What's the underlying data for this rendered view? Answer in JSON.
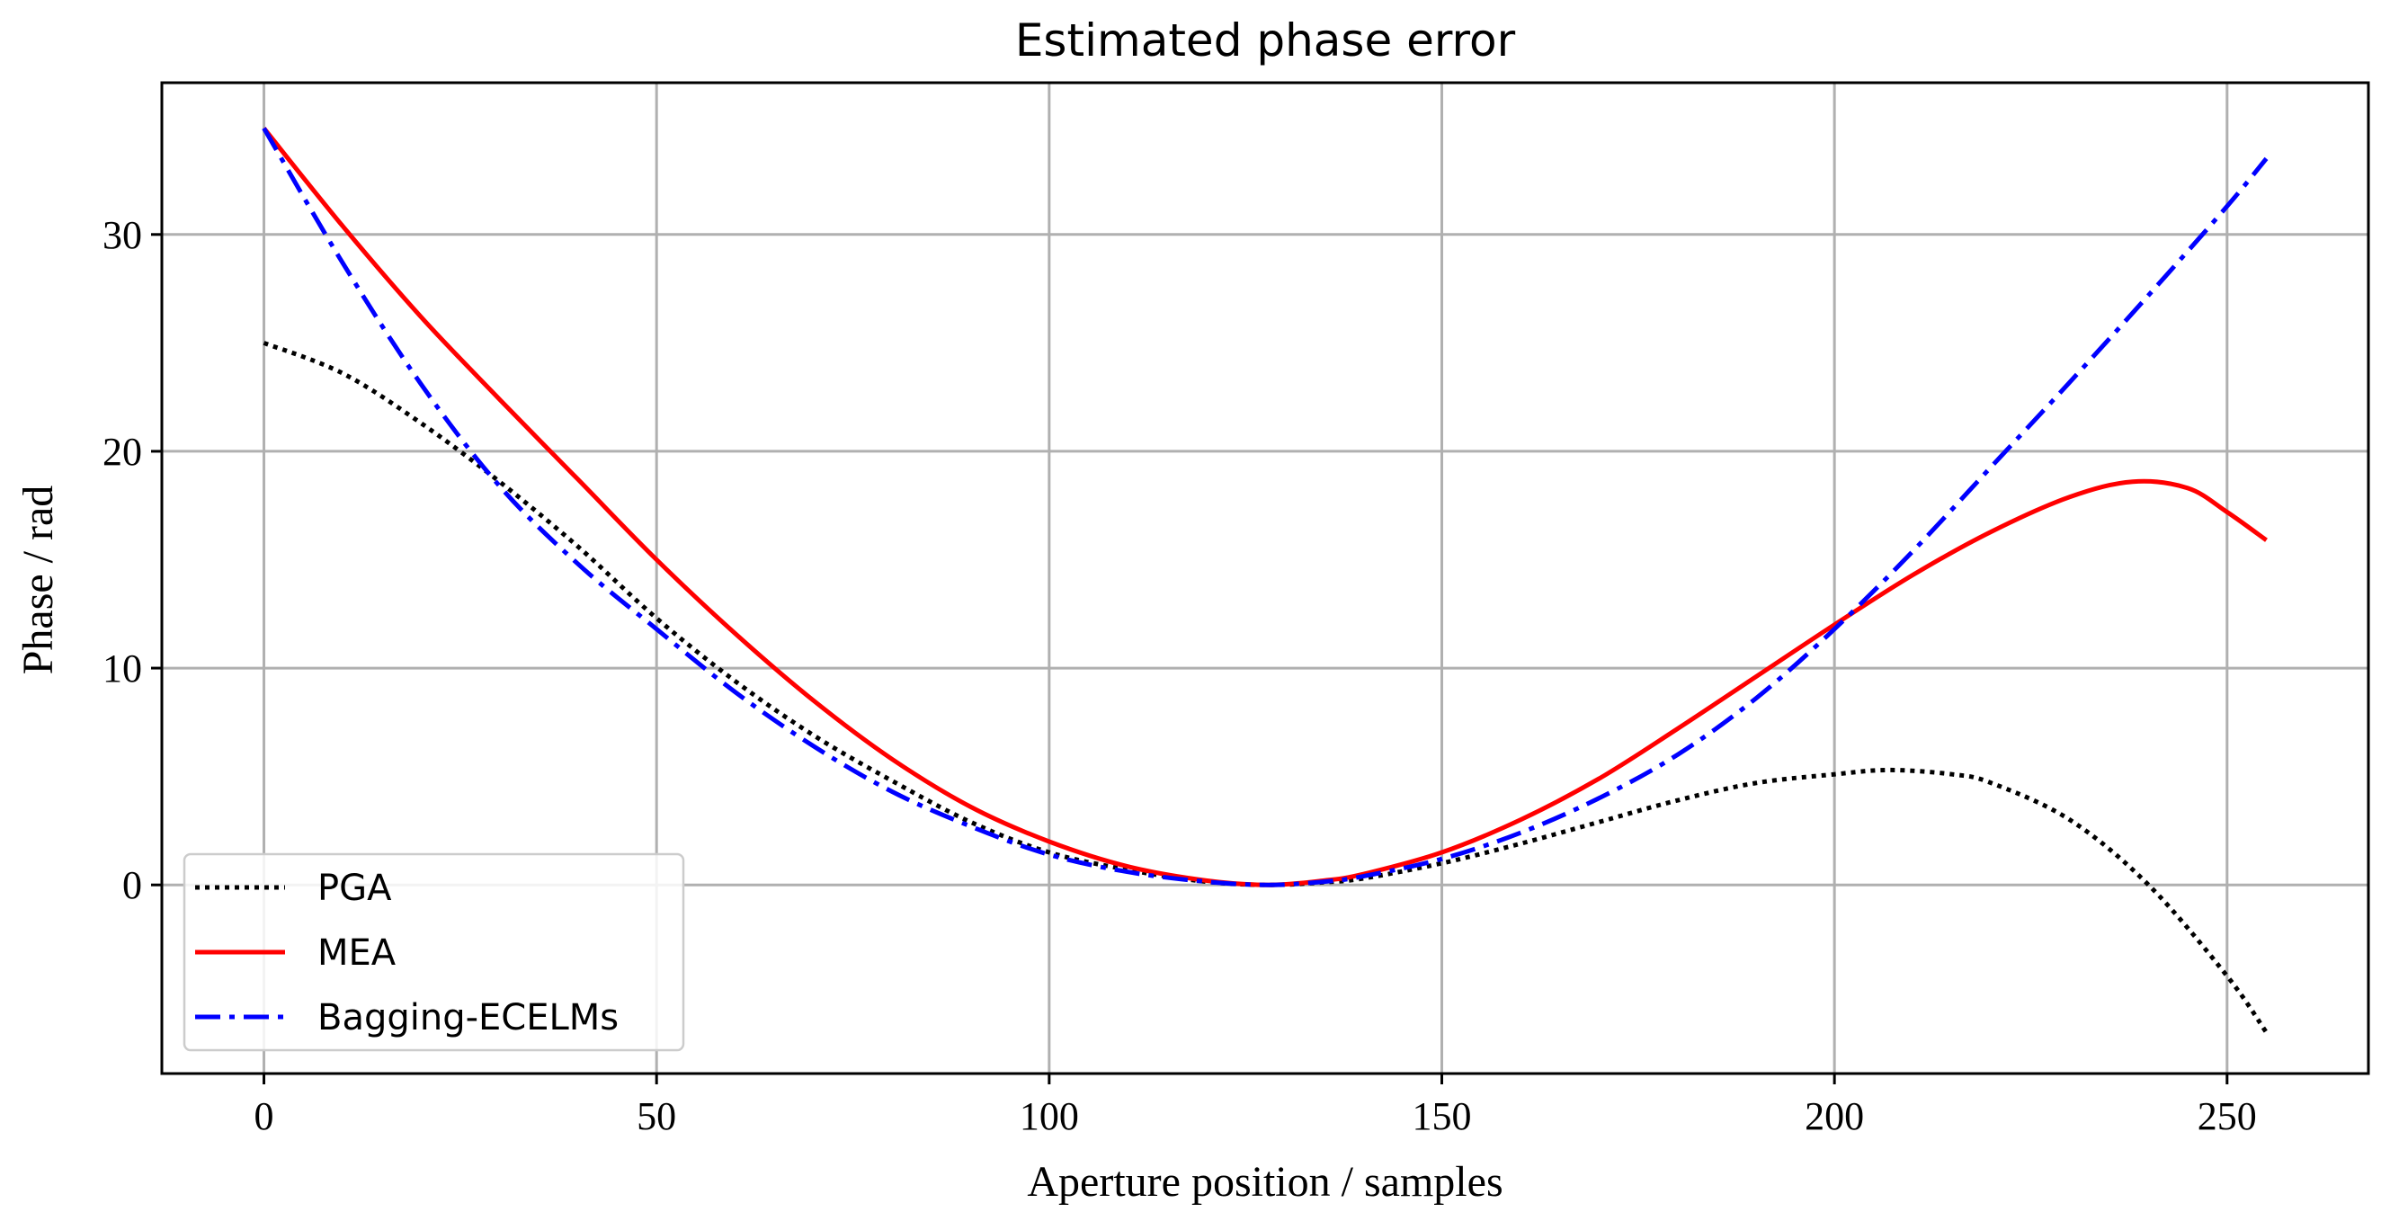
{
  "chart_data": {
    "type": "line",
    "title": "Estimated phase error",
    "xlabel": "Aperture position / samples",
    "ylabel": "Phase / rad",
    "xlim": [
      -13,
      268
    ],
    "ylim": [
      -8.7,
      37
    ],
    "xticks": [
      0,
      50,
      100,
      150,
      200,
      250
    ],
    "yticks": [
      0,
      10,
      20,
      30
    ],
    "grid": true,
    "legend_position": "bottom-left",
    "series": [
      {
        "name": "PGA",
        "color": "#000000",
        "style": "dotted",
        "x": [
          0,
          10,
          20,
          30,
          40,
          50,
          60,
          70,
          80,
          90,
          100,
          110,
          120,
          128,
          135,
          140,
          150,
          160,
          170,
          180,
          190,
          200,
          207,
          215,
          220,
          230,
          240,
          250,
          255
        ],
        "y": [
          25.0,
          23.6,
          21.3,
          18.6,
          15.6,
          12.3,
          9.4,
          6.9,
          4.8,
          2.9,
          1.5,
          0.7,
          0.15,
          0.0,
          0.12,
          0.3,
          1.0,
          1.9,
          2.9,
          3.9,
          4.7,
          5.1,
          5.3,
          5.1,
          4.7,
          3.0,
          0.0,
          -4.2,
          -6.8
        ]
      },
      {
        "name": "MEA",
        "color": "#ff0000",
        "style": "solid",
        "x": [
          0,
          10,
          20,
          30,
          40,
          50,
          60,
          70,
          80,
          90,
          100,
          110,
          120,
          128,
          135,
          140,
          150,
          160,
          170,
          180,
          190,
          200,
          210,
          220,
          230,
          238,
          245,
          250,
          255
        ],
        "y": [
          34.9,
          30.4,
          26.2,
          22.4,
          18.7,
          15.0,
          11.6,
          8.5,
          5.8,
          3.6,
          2.0,
          0.85,
          0.2,
          0.0,
          0.2,
          0.5,
          1.5,
          3.0,
          4.9,
          7.2,
          9.6,
          12.0,
          14.3,
          16.3,
          17.9,
          18.6,
          18.3,
          17.2,
          15.9
        ]
      },
      {
        "name": "Bagging-ECELMs",
        "color": "#0000ff",
        "style": "dashdot",
        "x": [
          0,
          10,
          20,
          30,
          40,
          50,
          60,
          70,
          80,
          90,
          100,
          110,
          120,
          128,
          135,
          140,
          150,
          160,
          170,
          180,
          190,
          200,
          210,
          220,
          230,
          240,
          250,
          255
        ],
        "y": [
          34.9,
          28.7,
          23.1,
          18.4,
          14.8,
          11.8,
          8.9,
          6.4,
          4.3,
          2.7,
          1.4,
          0.6,
          0.15,
          0.0,
          0.15,
          0.4,
          1.2,
          2.4,
          4.0,
          6.0,
          8.6,
          11.8,
          15.4,
          19.3,
          23.2,
          27.2,
          31.3,
          33.5
        ]
      }
    ]
  }
}
